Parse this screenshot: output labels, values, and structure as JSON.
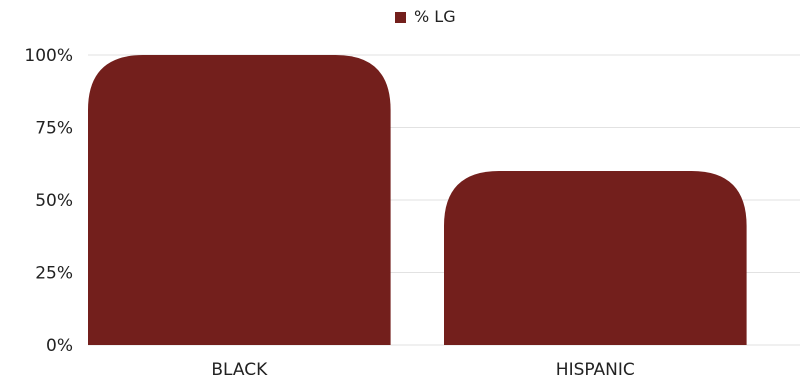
{
  "chart_data": {
    "type": "bar",
    "categories": [
      "BLACK",
      "HISPANIC"
    ],
    "series": [
      {
        "name": "% LG",
        "values": [
          100,
          60
        ],
        "color": "#731f1c"
      }
    ],
    "ylim": [
      0,
      100
    ],
    "yticks": [
      "0%",
      "25%",
      "50%",
      "75%",
      "100%"
    ],
    "grid": true,
    "legend": "top-center"
  }
}
